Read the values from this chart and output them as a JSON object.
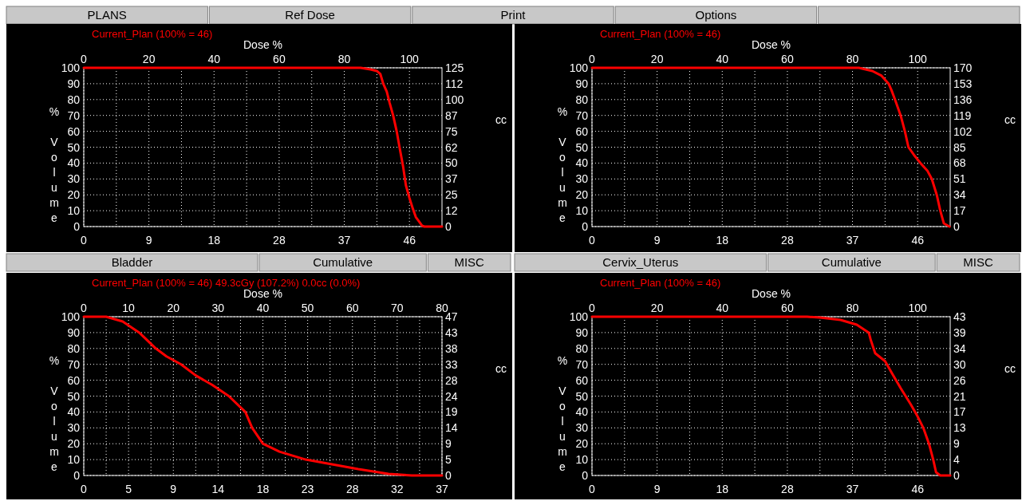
{
  "chart_data": [
    {
      "type": "other",
      "annotations": [
        "PLANS",
        "Ref Dose",
        "Print",
        "Options"
      ]
    },
    {
      "type": "line",
      "title": "Current_Plan (100% = 46)",
      "x2label": "Dose %",
      "ylabel": "% Volume",
      "y2label": "cc",
      "grid": true,
      "xlim": [
        0,
        50.6
      ],
      "xticks": [
        0,
        {
          "value": 9.2,
          "label": "9"
        },
        {
          "value": 18.4,
          "label": "18"
        },
        {
          "value": 27.6,
          "label": "28"
        },
        {
          "value": 36.8,
          "label": "37"
        },
        46
      ],
      "x2lim": [
        0,
        110
      ],
      "x2ticks": [
        0,
        {
          "value": 10,
          "label": null
        },
        20,
        {
          "value": 30,
          "label": null
        },
        40,
        {
          "value": 50,
          "label": null
        },
        60,
        {
          "value": 70,
          "label": null
        },
        80,
        {
          "value": 90,
          "label": null
        },
        100
      ],
      "ylim": [
        0,
        100
      ],
      "yticks": [
        0,
        10,
        20,
        30,
        40,
        50,
        60,
        70,
        80,
        90,
        100
      ],
      "y2lim": [
        0,
        124.9
      ],
      "y2ticks": [
        0,
        {
          "value": 12.49,
          "label": "12"
        },
        {
          "value": 24.98,
          "label": "25"
        },
        {
          "value": 37.47,
          "label": "37"
        },
        {
          "value": 49.96,
          "label": "50"
        },
        {
          "value": 62.45,
          "label": "62"
        },
        {
          "value": 74.94,
          "label": "75"
        },
        {
          "value": 87.43,
          "label": "87"
        },
        {
          "value": 99.92,
          "label": "100"
        },
        {
          "value": 112.41,
          "label": "112"
        },
        {
          "value": 124.9,
          "label": "125"
        }
      ],
      "series": [
        {
          "color": "#ff0000",
          "x": [
            0,
            39.1,
            40.5,
            41.4,
            41.9,
            42.3,
            42.8,
            43.2,
            43.7,
            44.2,
            44.6,
            45.1,
            45.5,
            46,
            46.5,
            46.9,
            47.4,
            47.8,
            48.1,
            50.6
          ],
          "values": [
            100,
            100,
            99,
            98,
            96,
            90,
            85,
            78,
            70,
            60,
            50,
            38,
            26,
            18,
            11,
            6,
            3,
            0.5,
            0,
            0
          ]
        }
      ]
    },
    {
      "type": "line",
      "title": "Current_Plan (100% = 46)",
      "x2label": "Dose %",
      "ylabel": "% Volume",
      "y2label": "cc",
      "grid": true,
      "xlim": [
        0,
        50.6
      ],
      "xticks": [
        0,
        {
          "value": 9.2,
          "label": "9"
        },
        {
          "value": 18.4,
          "label": "18"
        },
        {
          "value": 27.6,
          "label": "28"
        },
        {
          "value": 36.8,
          "label": "37"
        },
        46
      ],
      "x2lim": [
        0,
        110
      ],
      "x2ticks": [
        0,
        {
          "value": 10,
          "label": null
        },
        20,
        {
          "value": 30,
          "label": null
        },
        40,
        {
          "value": 50,
          "label": null
        },
        60,
        {
          "value": 70,
          "label": null
        },
        80,
        {
          "value": 90,
          "label": null
        },
        100
      ],
      "ylim": [
        0,
        100
      ],
      "yticks": [
        0,
        10,
        20,
        30,
        40,
        50,
        60,
        70,
        80,
        90,
        100
      ],
      "y2lim": [
        0,
        170
      ],
      "y2ticks": [
        0,
        17,
        34,
        51,
        68,
        85,
        102,
        119,
        136,
        153,
        170
      ],
      "series": [
        {
          "color": "#ff0000",
          "x": [
            0,
            37.7,
            39.6,
            40.9,
            41.9,
            42.3,
            42.8,
            43.6,
            44.2,
            44.7,
            45.5,
            46.4,
            47.4,
            48.0,
            48.7,
            49.2,
            49.7,
            50.5
          ],
          "values": [
            100,
            100,
            98,
            95,
            90,
            86,
            80,
            70,
            60,
            50,
            45,
            40,
            35,
            30,
            20,
            10,
            2,
            0
          ]
        }
      ]
    },
    {
      "type": "line",
      "title": "Current_Plan (100% = 46) 49.3cGy (107.2%) 0.0cc (0.0%)",
      "x2label": "Dose %",
      "ylabel": "% Volume",
      "y2label": "cc",
      "grid": true,
      "annotations": [
        "Bladder",
        "Cumulative",
        "MISC"
      ],
      "xlim": [
        0,
        36.8
      ],
      "xticks": [
        0,
        {
          "value": 4.6,
          "label": "5"
        },
        {
          "value": 9.2,
          "label": "9"
        },
        {
          "value": 13.8,
          "label": "14"
        },
        {
          "value": 18.4,
          "label": "18"
        },
        23,
        {
          "value": 27.6,
          "label": "28"
        },
        {
          "value": 32.2,
          "label": "32"
        },
        {
          "value": 36.8,
          "label": "37"
        }
      ],
      "x2lim": [
        0,
        80
      ],
      "x2ticks": [
        0,
        {
          "value": 5,
          "label": null
        },
        10,
        {
          "value": 15,
          "label": null
        },
        20,
        {
          "value": 25,
          "label": null
        },
        30,
        {
          "value": 35,
          "label": null
        },
        40,
        {
          "value": 45,
          "label": null
        },
        50,
        {
          "value": 55,
          "label": null
        },
        60,
        {
          "value": 65,
          "label": null
        },
        70,
        {
          "value": 75,
          "label": null
        },
        80
      ],
      "ylim": [
        0,
        100
      ],
      "yticks": [
        0,
        10,
        20,
        30,
        40,
        50,
        60,
        70,
        80,
        90,
        100
      ],
      "y2lim": [
        0,
        47.4
      ],
      "y2ticks": [
        0,
        {
          "value": 4.74,
          "label": "5"
        },
        {
          "value": 9.48,
          "label": "9"
        },
        {
          "value": 14.22,
          "label": "14"
        },
        {
          "value": 18.96,
          "label": "19"
        },
        {
          "value": 23.7,
          "label": "24"
        },
        {
          "value": 28.44,
          "label": "28"
        },
        {
          "value": 33.18,
          "label": "33"
        },
        {
          "value": 37.92,
          "label": "38"
        },
        {
          "value": 42.66,
          "label": "43"
        },
        {
          "value": 47.4,
          "label": "47"
        }
      ],
      "series": [
        {
          "color": "#ff0000",
          "x": [
            0,
            2.3,
            4.0,
            5.7,
            7.4,
            8.5,
            10.0,
            11.5,
            13.2,
            14.9,
            16.6,
            17.3,
            18.4,
            20.1,
            22.8,
            25.5,
            28.2,
            31.3,
            33.7,
            36.8
          ],
          "values": [
            100,
            100,
            97,
            90,
            80,
            75,
            70,
            63,
            57,
            50,
            40,
            30,
            20,
            15,
            10,
            7,
            4,
            1,
            0,
            0
          ]
        }
      ]
    },
    {
      "type": "line",
      "title": "Current_Plan (100% = 46)",
      "x2label": "Dose %",
      "ylabel": "% Volume",
      "y2label": "cc",
      "grid": true,
      "annotations": [
        "Cervix_Uterus",
        "Cumulative",
        "MISC"
      ],
      "xlim": [
        0,
        50.6
      ],
      "xticks": [
        0,
        {
          "value": 9.2,
          "label": "9"
        },
        {
          "value": 18.4,
          "label": "18"
        },
        {
          "value": 27.6,
          "label": "28"
        },
        {
          "value": 36.8,
          "label": "37"
        },
        46
      ],
      "x2lim": [
        0,
        110
      ],
      "x2ticks": [
        0,
        {
          "value": 10,
          "label": null
        },
        20,
        {
          "value": 30,
          "label": null
        },
        40,
        {
          "value": 50,
          "label": null
        },
        60,
        {
          "value": 70,
          "label": null
        },
        80,
        {
          "value": 90,
          "label": null
        },
        100
      ],
      "ylim": [
        0,
        100
      ],
      "yticks": [
        0,
        10,
        20,
        30,
        40,
        50,
        60,
        70,
        80,
        90,
        100
      ],
      "y2lim": [
        0,
        42.9
      ],
      "y2ticks": [
        0,
        {
          "value": 4.29,
          "label": "4"
        },
        {
          "value": 8.58,
          "label": "9"
        },
        {
          "value": 12.87,
          "label": "13"
        },
        {
          "value": 17.16,
          "label": "17"
        },
        {
          "value": 21.45,
          "label": "21"
        },
        {
          "value": 25.74,
          "label": "26"
        },
        {
          "value": 30.03,
          "label": "30"
        },
        {
          "value": 34.32,
          "label": "34"
        },
        {
          "value": 38.61,
          "label": "39"
        },
        {
          "value": 42.9,
          "label": "43"
        }
      ],
      "series": [
        {
          "color": "#ff0000",
          "x": [
            0,
            30.4,
            32.2,
            35.1,
            37.4,
            39.1,
            39.4,
            40.0,
            41.4,
            42.3,
            43.6,
            45.0,
            45.9,
            46.8,
            47.6,
            48.2,
            48.6,
            49.2,
            50.6
          ],
          "values": [
            100,
            100,
            99.5,
            98,
            95,
            90,
            85,
            77,
            72,
            65,
            55,
            45,
            38,
            30,
            20,
            10,
            2,
            0,
            0
          ]
        }
      ]
    }
  ]
}
